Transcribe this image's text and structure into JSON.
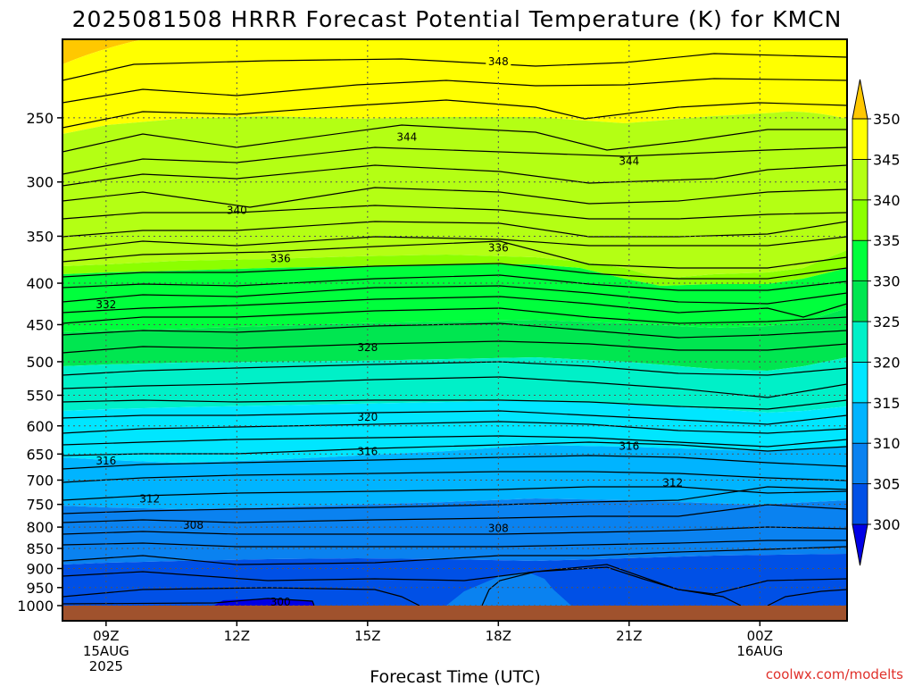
{
  "chart_data": {
    "type": "contour",
    "title": "2025081508 HRRR Forecast Potential Temperature (K) for KMCN",
    "xlabel": "Forecast Time (UTC)",
    "ylabel": "",
    "credit": "coolwx.com/modelts",
    "x_ticks": [
      {
        "value": 9,
        "lines": [
          "09Z",
          "15AUG",
          "2025"
        ]
      },
      {
        "value": 12,
        "lines": [
          "12Z"
        ]
      },
      {
        "value": 15,
        "lines": [
          "15Z"
        ]
      },
      {
        "value": 18,
        "lines": [
          "18Z"
        ]
      },
      {
        "value": 21,
        "lines": [
          "21Z"
        ]
      },
      {
        "value": 24,
        "lines": [
          "00Z",
          "16AUG"
        ]
      }
    ],
    "xlim": [
      8.0,
      26.0
    ],
    "y_ticks": [
      250,
      300,
      350,
      400,
      450,
      500,
      550,
      600,
      650,
      700,
      750,
      800,
      850,
      900,
      950,
      1000
    ],
    "ylim_hPa": [
      200,
      1000
    ],
    "y_scale": "log",
    "grid": "dotted",
    "surface_color": "#a0522d",
    "colorbar": {
      "levels": [
        300,
        305,
        310,
        315,
        320,
        325,
        330,
        335,
        340,
        345,
        350
      ],
      "labels": [
        "300",
        "305",
        "310",
        "315",
        "320",
        "325",
        "330",
        "335",
        "340",
        "345",
        "350"
      ],
      "colors": [
        "#0000e6",
        "#0050e6",
        "#0a82f0",
        "#00b4ff",
        "#00e6ff",
        "#00f0c8",
        "#00e650",
        "#00ff3c",
        "#8cff00",
        "#b4ff14",
        "#ffff00",
        "#ffc800"
      ]
    },
    "contour_labels": [
      {
        "text": "348",
        "x": 18.0,
        "p": 213
      },
      {
        "text": "344",
        "x": 15.9,
        "p": 264
      },
      {
        "text": "344",
        "x": 21.0,
        "p": 283
      },
      {
        "text": "340",
        "x": 12.0,
        "p": 325
      },
      {
        "text": "336",
        "x": 13.0,
        "p": 373
      },
      {
        "text": "336",
        "x": 18.0,
        "p": 362
      },
      {
        "text": "332",
        "x": 9.0,
        "p": 425
      },
      {
        "text": "328",
        "x": 15.0,
        "p": 480
      },
      {
        "text": "320",
        "x": 15.0,
        "p": 585
      },
      {
        "text": "316",
        "x": 9.0,
        "p": 663
      },
      {
        "text": "316",
        "x": 15.0,
        "p": 645
      },
      {
        "text": "316",
        "x": 21.0,
        "p": 636
      },
      {
        "text": "312",
        "x": 10.0,
        "p": 738
      },
      {
        "text": "312",
        "x": 22.0,
        "p": 705
      },
      {
        "text": "308",
        "x": 11.0,
        "p": 796
      },
      {
        "text": "308",
        "x": 18.0,
        "p": 803
      },
      {
        "text": "300",
        "x": 13.0,
        "p": 990
      }
    ]
  }
}
